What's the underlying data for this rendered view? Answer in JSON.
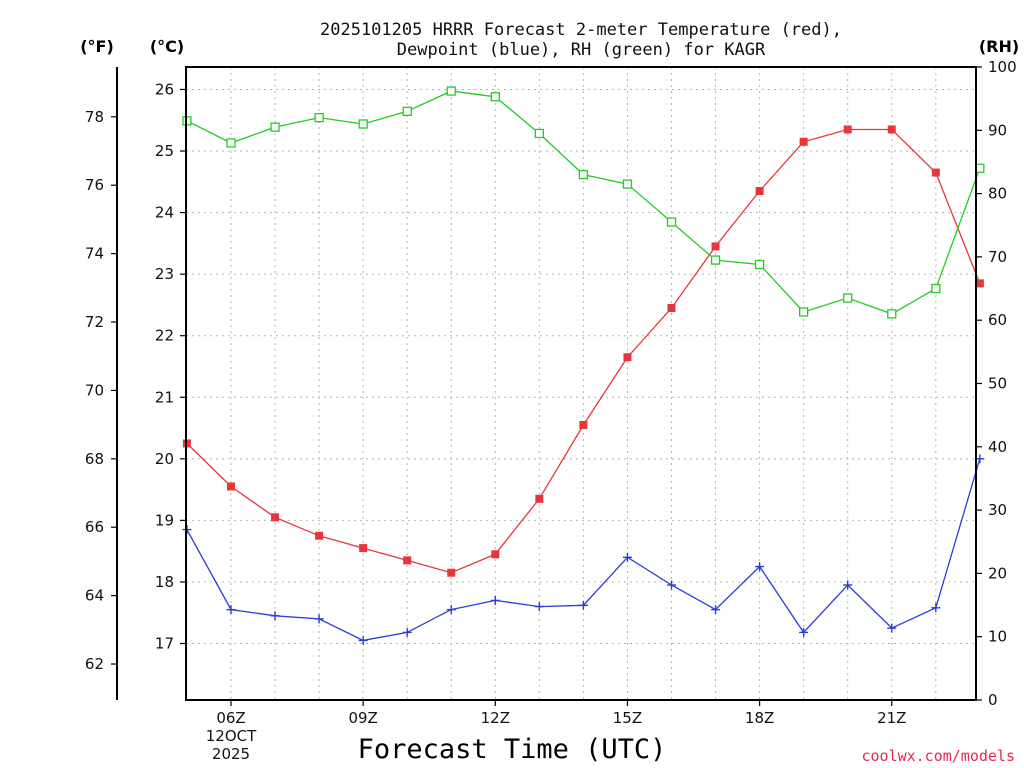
{
  "chart_data": {
    "type": "line",
    "title_line1": "2025101205 HRRR Forecast 2-meter Temperature (red),",
    "title_line2": "Dewpoint (blue), RH (green) for KAGR",
    "xlabel": "Forecast Time (UTC)",
    "credit": "coolwx.com/models",
    "unit_f": "(°F)",
    "unit_c": "(°C)",
    "unit_rh": "(RH)",
    "x": [
      5,
      6,
      7,
      8,
      9,
      10,
      11,
      12,
      13,
      14,
      15,
      16,
      17,
      18,
      19,
      20,
      21,
      22,
      23
    ],
    "xlim": [
      5,
      23
    ],
    "x_ticks": [
      {
        "x": 6,
        "label": "06Z",
        "sub1": "12OCT",
        "sub2": "2025"
      },
      {
        "x": 9,
        "label": "09Z"
      },
      {
        "x": 12,
        "label": "12Z"
      },
      {
        "x": 15,
        "label": "15Z"
      },
      {
        "x": 18,
        "label": "18Z"
      },
      {
        "x": 21,
        "label": "21Z"
      }
    ],
    "ylim_c": [
      16.07,
      26.35
    ],
    "y_ticks_c": [
      17,
      18,
      19,
      20,
      21,
      22,
      23,
      24,
      25,
      26
    ],
    "y_ticks_f": [
      62,
      64,
      66,
      68,
      70,
      72,
      74,
      76,
      78
    ],
    "ylim_rh": [
      0,
      100
    ],
    "y_ticks_rh": [
      0,
      10,
      20,
      30,
      40,
      50,
      60,
      70,
      80,
      90,
      100
    ],
    "series": [
      {
        "name": "Temperature",
        "unit": "C",
        "color": "#e8353a",
        "marker": "filled-square",
        "values": [
          20.25,
          19.55,
          19.05,
          18.75,
          18.55,
          18.35,
          18.15,
          18.45,
          19.35,
          20.55,
          21.65,
          22.45,
          23.45,
          24.35,
          25.15,
          25.35,
          25.35,
          24.65,
          22.85
        ]
      },
      {
        "name": "Dewpoint",
        "unit": "C",
        "color": "#2a3cdc",
        "marker": "plus",
        "values": [
          18.85,
          17.55,
          17.45,
          17.4,
          17.05,
          17.18,
          17.55,
          17.7,
          17.6,
          17.62,
          18.4,
          17.95,
          17.55,
          18.25,
          17.18,
          17.95,
          17.25,
          17.58,
          20.0
        ]
      },
      {
        "name": "RH",
        "unit": "%",
        "color": "#22cc22",
        "marker": "open-square",
        "values": [
          91.5,
          88.0,
          90.5,
          92.0,
          91.0,
          93.0,
          96.2,
          95.3,
          89.5,
          83.0,
          81.5,
          75.5,
          69.5,
          68.8,
          61.3,
          63.5,
          61.0,
          65.0,
          84.0
        ]
      }
    ]
  }
}
